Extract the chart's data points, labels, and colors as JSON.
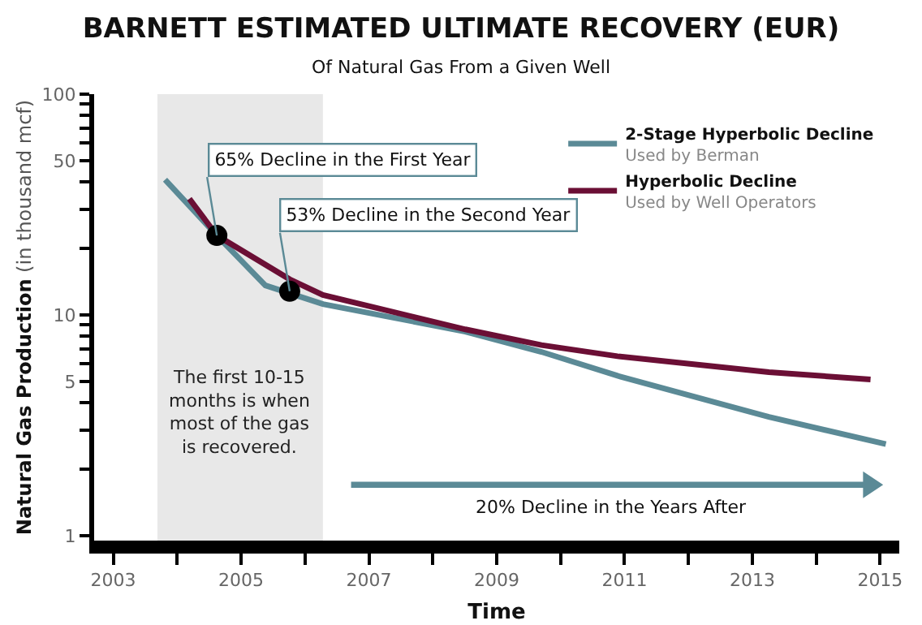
{
  "chart_data": {
    "type": "line",
    "title": "BARNETT ESTIMATED ULTIMATE RECOVERY (EUR)",
    "subtitle": "Of Natural Gas From a Given Well",
    "xlabel": "Time",
    "ylabel": "Natural Gas Production (in thousand mcf)",
    "log": true,
    "grid": false,
    "legend": "top right",
    "line_style": "solid",
    "xlim": [
      2002.7,
      2015.3
    ],
    "xticks": [
      2003,
      {
        "value": 2004,
        "label": null
      },
      2005,
      {
        "value": 2006,
        "label": null
      },
      2007,
      {
        "value": 2008,
        "label": null
      },
      2009,
      {
        "value": 2010,
        "label": null
      },
      2011,
      {
        "value": 2012,
        "label": null
      },
      2013,
      {
        "value": 2014,
        "label": null
      },
      2015
    ],
    "ylim": [
      0.95,
      100
    ],
    "yticks": [
      1,
      {
        "value": 2,
        "label": null
      },
      {
        "value": 3,
        "label": null
      },
      {
        "value": 4,
        "label": null
      },
      5,
      {
        "value": 6,
        "label": null
      },
      {
        "value": 7,
        "label": null
      },
      {
        "value": 8,
        "label": null
      },
      {
        "value": 9,
        "label": null
      },
      10,
      {
        "value": 20,
        "label": null
      },
      {
        "value": 30,
        "label": null
      },
      {
        "value": 40,
        "label": null
      },
      50,
      {
        "value": 60,
        "label": null
      },
      {
        "value": 70,
        "label": null
      },
      {
        "value": 80,
        "label": null
      },
      {
        "value": 90,
        "label": null
      },
      100
    ],
    "bands": [
      {
        "axis": "x",
        "from": 2003.69,
        "to": 2006.28,
        "color": "#e8e8e8",
        "label": "The first 10-15\nmonths is when\nmost of the gas\nis recovered."
      }
    ],
    "series": [
      {
        "name": "2-Stage Hyperbolic Decline\nUsed by Berman",
        "color": "#5b8a96",
        "x": [
          2003.81,
          2004.62,
          2005.38,
          2006.28,
          2008.51,
          2009.7,
          2010.89,
          2013.26,
          2015.09
        ],
        "values": [
          41,
          22.9,
          13.6,
          11.2,
          8.4,
          6.8,
          5.3,
          3.45,
          2.6
        ]
      },
      {
        "name": "Hyperbolic Decline\nUsed by Well Operators",
        "color": "#6b0f35",
        "x": [
          2004.19,
          2004.62,
          2005.76,
          2006.28,
          2008.51,
          2009.7,
          2010.89,
          2013.26,
          2014.85
        ],
        "values": [
          33.6,
          22.9,
          14.5,
          12.3,
          8.6,
          7.3,
          6.5,
          5.5,
          5.1
        ]
      },
      {
        "color": "#000000",
        "type": "scatter",
        "marker": "circle",
        "x": [
          2004.62,
          2005.76
        ],
        "values": [
          22.9,
          12.8
        ]
      }
    ],
    "annotations": [
      {
        "text": "65% Decline in the First Year",
        "x": 2004.62,
        "y": 22.9
      },
      {
        "text": "53% Decline in the Second Year",
        "x": 2005.76,
        "y": 12.8
      },
      "20% Decline in the Years After"
    ]
  }
}
